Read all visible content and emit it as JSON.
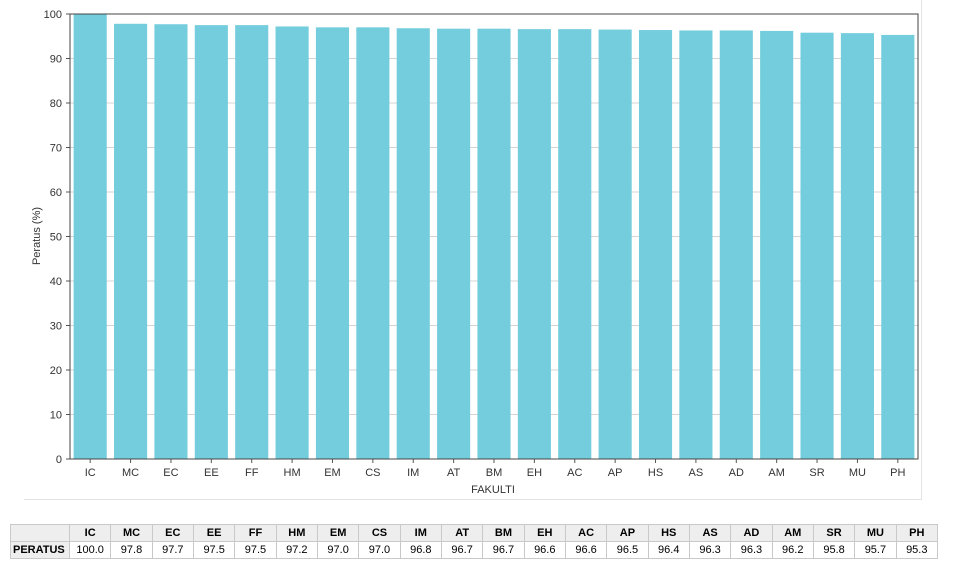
{
  "chart_data": {
    "type": "bar",
    "categories": [
      "IC",
      "MC",
      "EC",
      "EE",
      "FF",
      "HM",
      "EM",
      "CS",
      "IM",
      "AT",
      "BM",
      "EH",
      "AC",
      "AP",
      "HS",
      "AS",
      "AD",
      "AM",
      "SR",
      "MU",
      "PH"
    ],
    "values": [
      100.0,
      97.8,
      97.7,
      97.5,
      97.5,
      97.2,
      97.0,
      97.0,
      96.8,
      96.7,
      96.7,
      96.6,
      96.6,
      96.5,
      96.4,
      96.3,
      96.3,
      96.2,
      95.8,
      95.7,
      95.3
    ],
    "xlabel": "FAKULTI",
    "ylabel": "Peratus (%)",
    "ylim": [
      0,
      100
    ],
    "yticks": [
      0,
      10,
      20,
      30,
      40,
      50,
      60,
      70,
      80,
      90,
      100
    ],
    "grid": true,
    "bar_color": "#74cddd"
  },
  "table": {
    "row_label": "PERATUS",
    "columns": [
      "IC",
      "MC",
      "EC",
      "EE",
      "FF",
      "HM",
      "EM",
      "CS",
      "IM",
      "AT",
      "BM",
      "EH",
      "AC",
      "AP",
      "HS",
      "AS",
      "AD",
      "AM",
      "SR",
      "MU",
      "PH"
    ],
    "values": [
      "100.0",
      "97.8",
      "97.7",
      "97.5",
      "97.5",
      "97.2",
      "97.0",
      "97.0",
      "96.8",
      "96.7",
      "96.7",
      "96.6",
      "96.6",
      "96.5",
      "96.4",
      "96.3",
      "96.3",
      "96.2",
      "95.8",
      "95.7",
      "95.3"
    ]
  }
}
